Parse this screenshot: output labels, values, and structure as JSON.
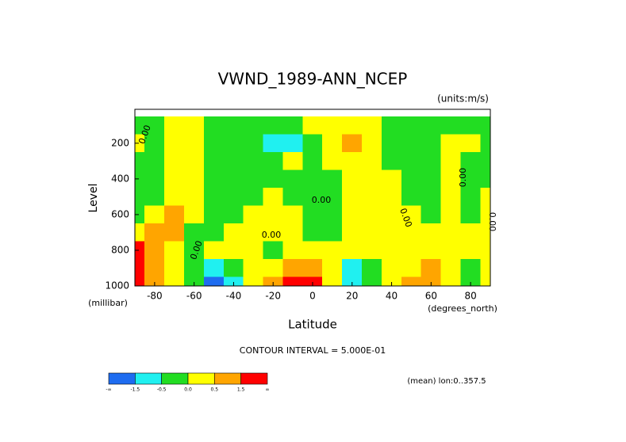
{
  "chart_data": {
    "type": "contour",
    "title": "VWND_1989-ANN_NCEP",
    "subtitle": "(units:m/s)",
    "x_label": "Latitude",
    "x_unit": "(degrees_north)",
    "y_label": "Level",
    "y_unit": "(millibar)",
    "note": "CONTOUR INTERVAL = 5.000E-01",
    "footnote": "(mean) lon:0..357.5",
    "x": [
      -90,
      -80,
      -70,
      -60,
      -50,
      -40,
      -30,
      -20,
      -10,
      0,
      10,
      20,
      30,
      40,
      50,
      60,
      70,
      80,
      90
    ],
    "y": [
      100,
      200,
      300,
      400,
      500,
      600,
      700,
      800,
      900,
      1000
    ],
    "z": [
      [
        -0.2,
        -0.2,
        0.2,
        0.2,
        -0.2,
        -0.2,
        -0.2,
        -0.3,
        -0.2,
        0.1,
        0.2,
        0.3,
        0.1,
        -0.2,
        -0.2,
        -0.2,
        -0.2,
        -0.2,
        -0.2
      ],
      [
        0.1,
        -0.2,
        0.2,
        0.2,
        -0.2,
        -0.2,
        -0.3,
        -0.7,
        -0.8,
        -0.2,
        0.3,
        0.6,
        0.3,
        -0.1,
        -0.2,
        -0.2,
        0.2,
        0.2,
        -0.2
      ],
      [
        -0.2,
        -0.2,
        0.2,
        0.2,
        -0.2,
        -0.2,
        -0.2,
        -0.3,
        0.2,
        -0.2,
        0.2,
        0.2,
        0.2,
        -0.2,
        -0.2,
        -0.2,
        0.2,
        -0.2,
        -0.2
      ],
      [
        -0.2,
        -0.2,
        0.2,
        0.2,
        -0.2,
        -0.2,
        -0.2,
        -0.2,
        -0.2,
        -0.2,
        -0.2,
        0.2,
        0.2,
        0.2,
        -0.2,
        -0.2,
        0.2,
        -0.2,
        -0.2
      ],
      [
        -0.2,
        -0.2,
        0.2,
        0.2,
        -0.2,
        -0.2,
        -0.2,
        0.2,
        -0.2,
        -0.2,
        -0.2,
        0.2,
        0.2,
        0.2,
        -0.2,
        -0.2,
        0.2,
        -0.2,
        0.2
      ],
      [
        -0.2,
        0.2,
        0.6,
        0.2,
        -0.2,
        -0.2,
        0.2,
        0.2,
        0.2,
        -0.2,
        -0.2,
        0.2,
        0.2,
        0.2,
        0.2,
        -0.2,
        0.2,
        -0.2,
        0.2
      ],
      [
        0.2,
        0.6,
        0.7,
        -0.2,
        -0.2,
        0.2,
        0.2,
        0.2,
        0.2,
        -0.2,
        -0.2,
        0.2,
        0.2,
        0.2,
        0.2,
        0.2,
        0.2,
        0.2,
        0.2
      ],
      [
        1.8,
        0.8,
        0.2,
        -0.2,
        0.2,
        0.2,
        0.2,
        -0.2,
        0.2,
        0.2,
        0.2,
        0.2,
        0.2,
        0.2,
        0.2,
        0.2,
        0.2,
        0.2,
        0.2
      ],
      [
        2.0,
        1.0,
        0.2,
        -0.2,
        -0.6,
        -0.2,
        0.2,
        0.2,
        0.7,
        0.8,
        0.2,
        -0.6,
        -0.2,
        0.2,
        0.3,
        0.6,
        0.2,
        -0.2,
        0.2
      ],
      [
        2.0,
        1.2,
        0.2,
        -0.5,
        -1.8,
        -0.7,
        0.2,
        0.7,
        1.6,
        1.8,
        0.3,
        -1.2,
        -0.3,
        0.2,
        0.7,
        0.8,
        0.2,
        -0.2,
        0.2
      ]
    ],
    "xlim": [
      -90,
      90
    ],
    "ylim": [
      1000,
      10
    ],
    "xticks": [
      -80,
      -60,
      -40,
      -20,
      0,
      20,
      40,
      60,
      80
    ],
    "yticks": [
      200,
      400,
      600,
      800,
      1000
    ],
    "levels": [
      {
        "value": -1.5,
        "label": "-1.5"
      },
      {
        "value": -0.5,
        "label": "-0.5"
      },
      {
        "value": 0,
        "label": "0.0"
      },
      {
        "value": 0.5,
        "label": "0.5"
      },
      {
        "value": 1.5,
        "label": "1.5"
      }
    ],
    "colorbar_ends": [
      "-∞",
      "∞"
    ],
    "colors": [
      "#1e6cf0",
      "#20f0f0",
      "#22dd22",
      "#ffff00",
      "#ffa500",
      "#ff0000"
    ],
    "contour_labels": [
      "0.00",
      "0.00",
      "0.00",
      "0.00",
      "0.00",
      "0.00",
      "0.00"
    ]
  }
}
